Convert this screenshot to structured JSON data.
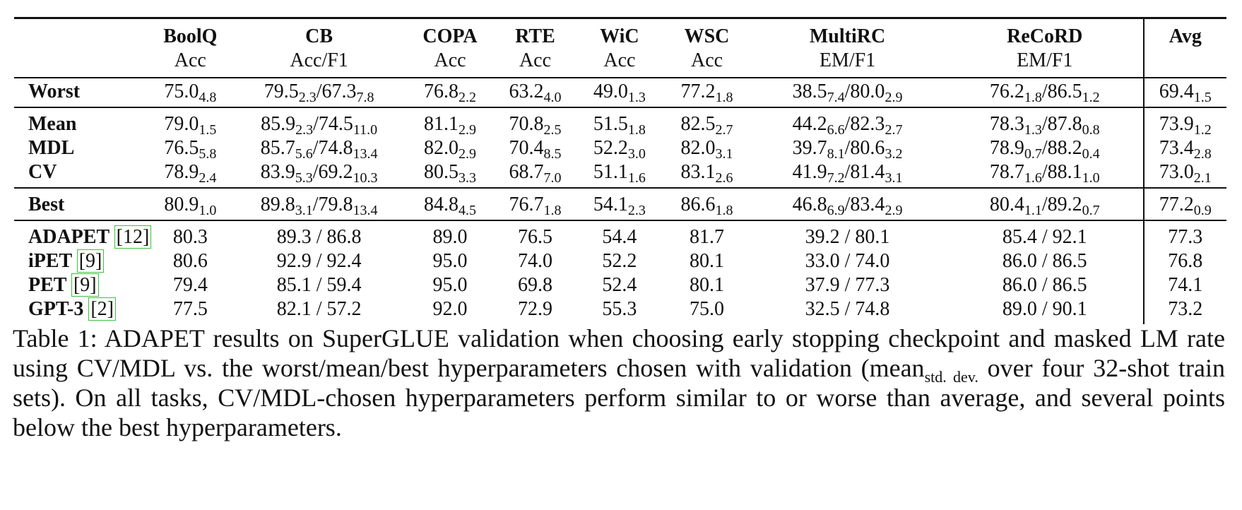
{
  "table": {
    "columns": [
      {
        "name": "BoolQ",
        "metric": "Acc"
      },
      {
        "name": "CB",
        "metric": "Acc/F1"
      },
      {
        "name": "COPA",
        "metric": "Acc"
      },
      {
        "name": "RTE",
        "metric": "Acc"
      },
      {
        "name": "WiC",
        "metric": "Acc"
      },
      {
        "name": "WSC",
        "metric": "Acc"
      },
      {
        "name": "MultiRC",
        "metric": "EM/F1"
      },
      {
        "name": "ReCoRD",
        "metric": "EM/F1"
      },
      {
        "name": "Avg",
        "metric": ""
      }
    ],
    "groups": [
      {
        "rows": [
          {
            "label": "Worst",
            "ref": "",
            "cells": [
              [
                [
                  "75.0",
                  "4.8"
                ]
              ],
              [
                [
                  "79.5",
                  "2.3"
                ],
                [
                  "/67.3",
                  "7.8"
                ]
              ],
              [
                [
                  "76.8",
                  "2.2"
                ]
              ],
              [
                [
                  "63.2",
                  "4.0"
                ]
              ],
              [
                [
                  "49.0",
                  "1.3"
                ]
              ],
              [
                [
                  "77.2",
                  "1.8"
                ]
              ],
              [
                [
                  "38.5",
                  "7.4"
                ],
                [
                  "/80.0",
                  "2.9"
                ]
              ],
              [
                [
                  "76.2",
                  "1.8"
                ],
                [
                  "/86.5",
                  "1.2"
                ]
              ],
              [
                [
                  "69.4",
                  "1.5"
                ]
              ]
            ]
          }
        ]
      },
      {
        "rows": [
          {
            "label": "Mean",
            "ref": "",
            "cells": [
              [
                [
                  "79.0",
                  "1.5"
                ]
              ],
              [
                [
                  "85.9",
                  "2.3"
                ],
                [
                  "/74.5",
                  "11.0"
                ]
              ],
              [
                [
                  "81.1",
                  "2.9"
                ]
              ],
              [
                [
                  "70.8",
                  "2.5"
                ]
              ],
              [
                [
                  "51.5",
                  "1.8"
                ]
              ],
              [
                [
                  "82.5",
                  "2.7"
                ]
              ],
              [
                [
                  "44.2",
                  "6.6"
                ],
                [
                  "/82.3",
                  "2.7"
                ]
              ],
              [
                [
                  "78.3",
                  "1.3"
                ],
                [
                  "/87.8",
                  "0.8"
                ]
              ],
              [
                [
                  "73.9",
                  "1.2"
                ]
              ]
            ]
          },
          {
            "label": "MDL",
            "ref": "",
            "cells": [
              [
                [
                  "76.5",
                  "5.8"
                ]
              ],
              [
                [
                  "85.7",
                  "5.6"
                ],
                [
                  "/74.8",
                  "13.4"
                ]
              ],
              [
                [
                  "82.0",
                  "2.9"
                ]
              ],
              [
                [
                  "70.4",
                  "8.5"
                ]
              ],
              [
                [
                  "52.2",
                  "3.0"
                ]
              ],
              [
                [
                  "82.0",
                  "3.1"
                ]
              ],
              [
                [
                  "39.7",
                  "8.1"
                ],
                [
                  "/80.6",
                  "3.2"
                ]
              ],
              [
                [
                  "78.9",
                  "0.7"
                ],
                [
                  "/88.2",
                  "0.4"
                ]
              ],
              [
                [
                  "73.4",
                  "2.8"
                ]
              ]
            ]
          },
          {
            "label": "CV",
            "ref": "",
            "cells": [
              [
                [
                  "78.9",
                  "2.4"
                ]
              ],
              [
                [
                  "83.9",
                  "5.3"
                ],
                [
                  "/69.2",
                  "10.3"
                ]
              ],
              [
                [
                  "80.5",
                  "3.3"
                ]
              ],
              [
                [
                  "68.7",
                  "7.0"
                ]
              ],
              [
                [
                  "51.1",
                  "1.6"
                ]
              ],
              [
                [
                  "83.1",
                  "2.6"
                ]
              ],
              [
                [
                  "41.9",
                  "7.2"
                ],
                [
                  "/81.4",
                  "3.1"
                ]
              ],
              [
                [
                  "78.7",
                  "1.6"
                ],
                [
                  "/88.1",
                  "1.0"
                ]
              ],
              [
                [
                  "73.0",
                  "2.1"
                ]
              ]
            ]
          }
        ]
      },
      {
        "rows": [
          {
            "label": "Best",
            "ref": "",
            "cells": [
              [
                [
                  "80.9",
                  "1.0"
                ]
              ],
              [
                [
                  "89.8",
                  "3.1"
                ],
                [
                  "/79.8",
                  "13.4"
                ]
              ],
              [
                [
                  "84.8",
                  "4.5"
                ]
              ],
              [
                [
                  "76.7",
                  "1.8"
                ]
              ],
              [
                [
                  "54.1",
                  "2.3"
                ]
              ],
              [
                [
                  "86.6",
                  "1.8"
                ]
              ],
              [
                [
                  "46.8",
                  "6.9"
                ],
                [
                  "/83.4",
                  "2.9"
                ]
              ],
              [
                [
                  "80.4",
                  "1.1"
                ],
                [
                  "/89.2",
                  "0.7"
                ]
              ],
              [
                [
                  "77.2",
                  "0.9"
                ]
              ]
            ]
          }
        ]
      },
      {
        "rows": [
          {
            "label": "ADAPET",
            "ref": "[12]",
            "cells": [
              [
                [
                  "80.3",
                  ""
                ]
              ],
              [
                [
                  "89.3 / 86.8",
                  ""
                ]
              ],
              [
                [
                  "89.0",
                  ""
                ]
              ],
              [
                [
                  "76.5",
                  ""
                ]
              ],
              [
                [
                  "54.4",
                  ""
                ]
              ],
              [
                [
                  "81.7",
                  ""
                ]
              ],
              [
                [
                  "39.2 / 80.1",
                  ""
                ]
              ],
              [
                [
                  "85.4 / 92.1",
                  ""
                ]
              ],
              [
                [
                  "77.3",
                  ""
                ]
              ]
            ]
          },
          {
            "label": "iPET",
            "ref": "[9]",
            "cells": [
              [
                [
                  "80.6",
                  ""
                ]
              ],
              [
                [
                  "92.9 / 92.4",
                  ""
                ]
              ],
              [
                [
                  "95.0",
                  ""
                ]
              ],
              [
                [
                  "74.0",
                  ""
                ]
              ],
              [
                [
                  "52.2",
                  ""
                ]
              ],
              [
                [
                  "80.1",
                  ""
                ]
              ],
              [
                [
                  "33.0 / 74.0",
                  ""
                ]
              ],
              [
                [
                  "86.0 / 86.5",
                  ""
                ]
              ],
              [
                [
                  "76.8",
                  ""
                ]
              ]
            ]
          },
          {
            "label": "PET",
            "ref": "[9]",
            "cells": [
              [
                [
                  "79.4",
                  ""
                ]
              ],
              [
                [
                  "85.1 / 59.4",
                  ""
                ]
              ],
              [
                [
                  "95.0",
                  ""
                ]
              ],
              [
                [
                  "69.8",
                  ""
                ]
              ],
              [
                [
                  "52.4",
                  ""
                ]
              ],
              [
                [
                  "80.1",
                  ""
                ]
              ],
              [
                [
                  "37.9 / 77.3",
                  ""
                ]
              ],
              [
                [
                  "86.0 / 86.5",
                  ""
                ]
              ],
              [
                [
                  "74.1",
                  ""
                ]
              ]
            ]
          },
          {
            "label": "GPT-3",
            "ref": "[2]",
            "cells": [
              [
                [
                  "77.5",
                  ""
                ]
              ],
              [
                [
                  "82.1 / 57.2",
                  ""
                ]
              ],
              [
                [
                  "92.0",
                  ""
                ]
              ],
              [
                [
                  "72.9",
                  ""
                ]
              ],
              [
                [
                  "55.3",
                  ""
                ]
              ],
              [
                [
                  "75.0",
                  ""
                ]
              ],
              [
                [
                  "32.5 / 74.8",
                  ""
                ]
              ],
              [
                [
                  "89.0 / 90.1",
                  ""
                ]
              ],
              [
                [
                  "73.2",
                  ""
                ]
              ]
            ]
          }
        ]
      }
    ]
  },
  "caption": {
    "part1": "Table 1: ADAPET results on SuperGLUE validation when choosing early stopping checkpoint and masked LM rate using CV/MDL vs. the worst/mean/best hyperparameters chosen with validation (mean",
    "sub": "std. dev.",
    "part2": " over four 32-shot train sets). On all tasks, CV/MDL-chosen hyperparameters perform similar to or worse than average, and several points below the best hyperparameters."
  },
  "colors": {
    "rule": "#111111",
    "ref_box": "#3cc23c"
  }
}
